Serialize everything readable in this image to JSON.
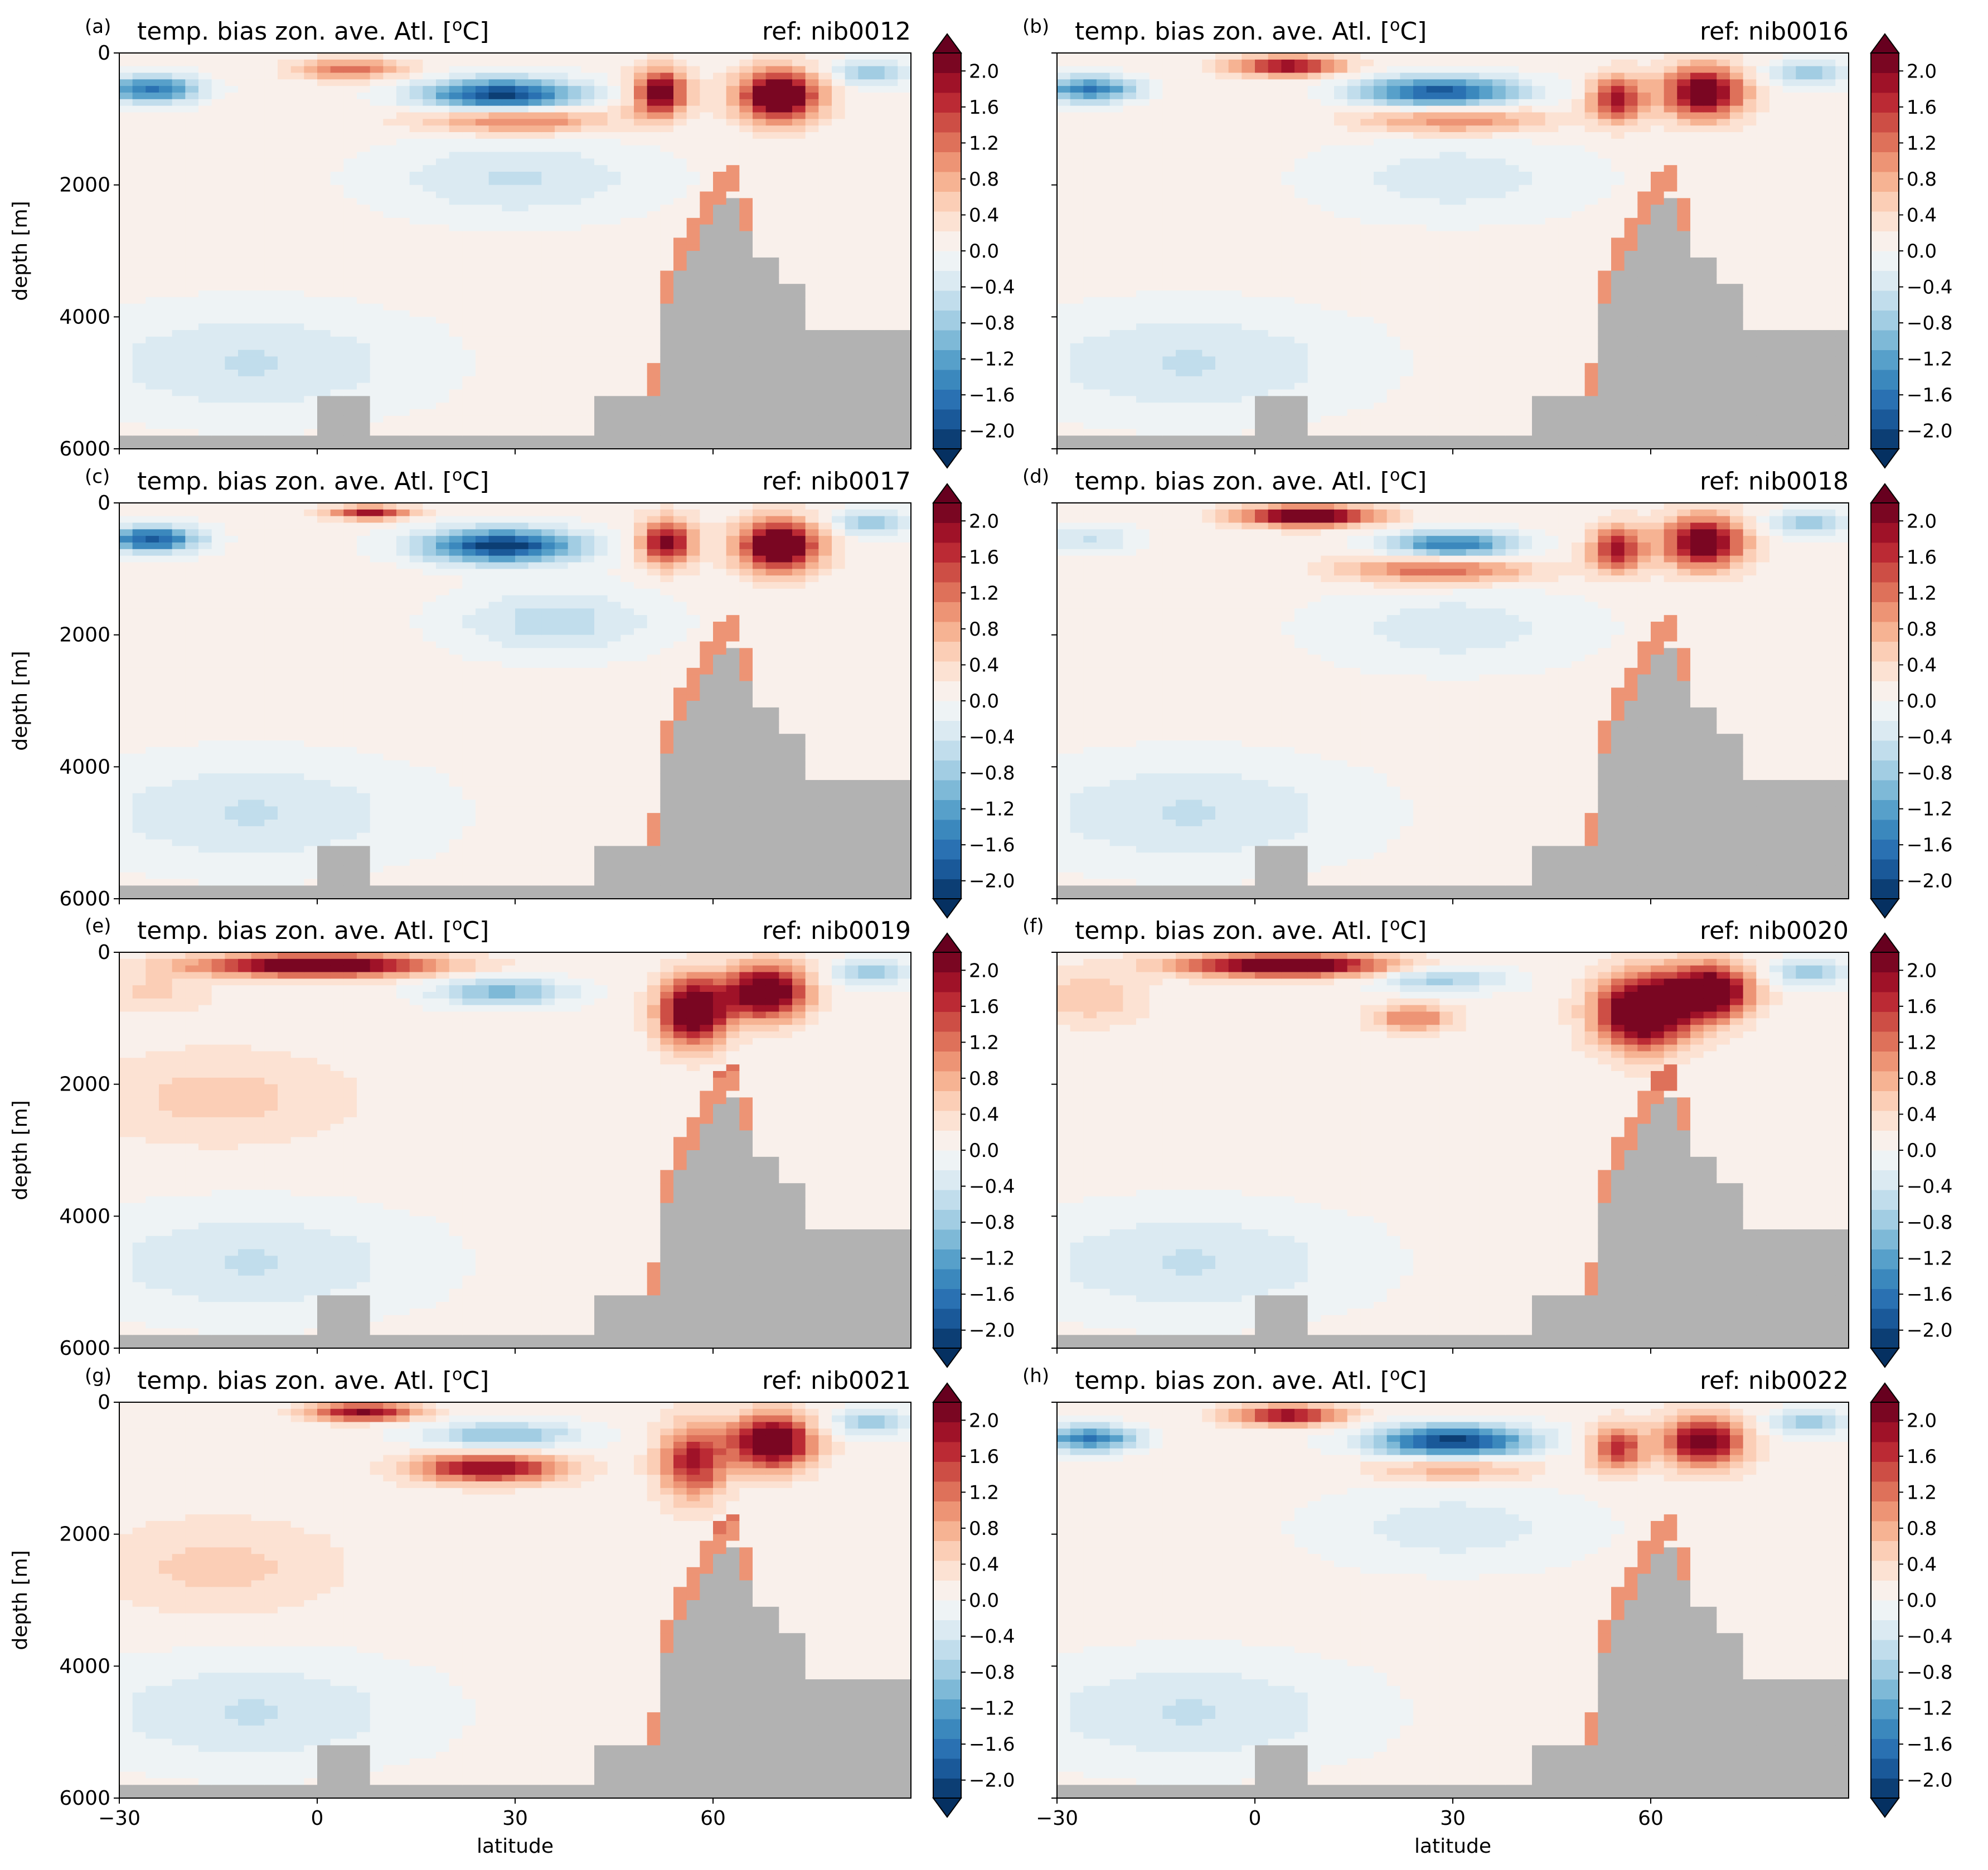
{
  "figure": {
    "panel_title": "temp. bias zon. ave. Atl. [°C]",
    "panel_title_degree_symbol": "o",
    "xlabel": "latitude",
    "ylabel": "depth [m]"
  },
  "colors": {
    "land": "#b2b2b2",
    "colormap": [
      "#053061",
      "#2166ac",
      "#4393c3",
      "#92c5de",
      "#d1e5f0",
      "#f7f7f7",
      "#fddbc7",
      "#f4a582",
      "#d6604d",
      "#b2182b",
      "#67001f"
    ]
  },
  "chart_data": [
    {
      "type": "heatmap",
      "panel": "(a)",
      "title": "temp. bias zon. ave. Atl. [°C]",
      "ref": "ref: nib0012",
      "xlabel": "",
      "ylabel": "depth [m]",
      "xlim": [
        -30,
        90
      ],
      "ylim": [
        6000,
        0
      ],
      "xticks": [
        -30,
        0,
        30,
        60
      ],
      "yticks": [
        0,
        2000,
        4000,
        6000
      ],
      "colorbar": {
        "vmin": -2.0,
        "vmax": 2.0,
        "ticks": [
          "−2.0",
          "−1.6",
          "−1.2",
          "−0.8",
          "−0.4",
          "0.0",
          "0.4",
          "0.8",
          "1.2",
          "1.6",
          "2.0"
        ],
        "extend": "both"
      },
      "bias_features": [
        {
          "lat": -25,
          "depth": 550,
          "value": -1.6,
          "rlat": 7,
          "rdepth": 200
        },
        {
          "lat": 5,
          "depth": 250,
          "value": 1.0,
          "rlat": 8,
          "rdepth": 160
        },
        {
          "lat": 28,
          "depth": 650,
          "value": -2.0,
          "rlat": 12,
          "rdepth": 260
        },
        {
          "lat": 30,
          "depth": 1000,
          "value": 1.2,
          "rlat": 14,
          "rdepth": 220
        },
        {
          "lat": 30,
          "depth": 1900,
          "value": -0.5,
          "rlat": 20,
          "rdepth": 600
        },
        {
          "lat": 52,
          "depth": 600,
          "value": 2.0,
          "rlat": 4,
          "rdepth": 350
        },
        {
          "lat": 70,
          "depth": 650,
          "value": 2.4,
          "rlat": 6,
          "rdepth": 380
        },
        {
          "lat": 84,
          "depth": 300,
          "value": -0.8,
          "rlat": 6,
          "rdepth": 200
        },
        {
          "lat": -10,
          "depth": 4700,
          "value": -0.5,
          "rlat": 25,
          "rdepth": 800
        }
      ]
    },
    {
      "type": "heatmap",
      "panel": "(b)",
      "title": "temp. bias zon. ave. Atl. [°C]",
      "ref": "ref: nib0016",
      "xlabel": "",
      "ylabel": "",
      "xlim": [
        -30,
        90
      ],
      "ylim": [
        6000,
        0
      ],
      "xticks": [
        -30,
        0,
        30,
        60
      ],
      "yticks": [
        0,
        2000,
        4000,
        6000
      ],
      "colorbar": {
        "vmin": -2.0,
        "vmax": 2.0,
        "ticks": [
          "−2.0",
          "−1.6",
          "−1.2",
          "−0.8",
          "−0.4",
          "0.0",
          "0.4",
          "0.8",
          "1.2",
          "1.6",
          "2.0"
        ],
        "extend": "both"
      },
      "bias_features": [
        {
          "lat": -25,
          "depth": 550,
          "value": -1.5,
          "rlat": 7,
          "rdepth": 200
        },
        {
          "lat": 5,
          "depth": 200,
          "value": 1.8,
          "rlat": 8,
          "rdepth": 150
        },
        {
          "lat": 28,
          "depth": 600,
          "value": -1.8,
          "rlat": 12,
          "rdepth": 250
        },
        {
          "lat": 30,
          "depth": 1000,
          "value": 1.0,
          "rlat": 14,
          "rdepth": 220
        },
        {
          "lat": 30,
          "depth": 1900,
          "value": -0.4,
          "rlat": 20,
          "rdepth": 600
        },
        {
          "lat": 55,
          "depth": 700,
          "value": 1.6,
          "rlat": 4,
          "rdepth": 350
        },
        {
          "lat": 68,
          "depth": 600,
          "value": 2.2,
          "rlat": 6,
          "rdepth": 380
        },
        {
          "lat": 84,
          "depth": 300,
          "value": -0.8,
          "rlat": 6,
          "rdepth": 200
        },
        {
          "lat": -10,
          "depth": 4700,
          "value": -0.5,
          "rlat": 25,
          "rdepth": 800
        }
      ]
    },
    {
      "type": "heatmap",
      "panel": "(c)",
      "title": "temp. bias zon. ave. Atl. [°C]",
      "ref": "ref: nib0017",
      "xlabel": "",
      "ylabel": "depth [m]",
      "xlim": [
        -30,
        90
      ],
      "ylim": [
        6000,
        0
      ],
      "xticks": [
        -30,
        0,
        30,
        60
      ],
      "yticks": [
        0,
        2000,
        4000,
        6000
      ],
      "colorbar": {
        "vmin": -2.0,
        "vmax": 2.0,
        "ticks": [
          "−2.0",
          "−1.6",
          "−1.2",
          "−0.8",
          "−0.4",
          "0.0",
          "0.4",
          "0.8",
          "1.2",
          "1.6",
          "2.0"
        ],
        "extend": "both"
      },
      "bias_features": [
        {
          "lat": -25,
          "depth": 550,
          "value": -1.8,
          "rlat": 7,
          "rdepth": 200
        },
        {
          "lat": 8,
          "depth": 150,
          "value": 1.6,
          "rlat": 6,
          "rdepth": 100
        },
        {
          "lat": 28,
          "depth": 650,
          "value": -2.0,
          "rlat": 12,
          "rdepth": 260
        },
        {
          "lat": 36,
          "depth": 1800,
          "value": -0.6,
          "rlat": 15,
          "rdepth": 500
        },
        {
          "lat": 53,
          "depth": 600,
          "value": 1.8,
          "rlat": 4,
          "rdepth": 350
        },
        {
          "lat": 70,
          "depth": 650,
          "value": 2.4,
          "rlat": 6,
          "rdepth": 380
        },
        {
          "lat": 84,
          "depth": 300,
          "value": -0.8,
          "rlat": 6,
          "rdepth": 200
        },
        {
          "lat": -10,
          "depth": 4700,
          "value": -0.5,
          "rlat": 25,
          "rdepth": 800
        }
      ]
    },
    {
      "type": "heatmap",
      "panel": "(d)",
      "title": "temp. bias zon. ave. Atl. [°C]",
      "ref": "ref: nib0018",
      "xlabel": "",
      "ylabel": "",
      "xlim": [
        -30,
        90
      ],
      "ylim": [
        6000,
        0
      ],
      "xticks": [
        -30,
        0,
        30,
        60
      ],
      "yticks": [
        0,
        2000,
        4000,
        6000
      ],
      "colorbar": {
        "vmin": -2.0,
        "vmax": 2.0,
        "ticks": [
          "−2.0",
          "−1.6",
          "−1.2",
          "−0.8",
          "−0.4",
          "0.0",
          "0.4",
          "0.8",
          "1.2",
          "1.6",
          "2.0"
        ],
        "extend": "both"
      },
      "bias_features": [
        {
          "lat": -25,
          "depth": 550,
          "value": -0.5,
          "rlat": 7,
          "rdepth": 200
        },
        {
          "lat": 8,
          "depth": 200,
          "value": 2.2,
          "rlat": 10,
          "rdepth": 150
        },
        {
          "lat": 30,
          "depth": 650,
          "value": -1.5,
          "rlat": 10,
          "rdepth": 220
        },
        {
          "lat": 28,
          "depth": 1000,
          "value": 1.2,
          "rlat": 14,
          "rdepth": 220
        },
        {
          "lat": 30,
          "depth": 1900,
          "value": -0.4,
          "rlat": 20,
          "rdepth": 600
        },
        {
          "lat": 55,
          "depth": 700,
          "value": 1.6,
          "rlat": 4,
          "rdepth": 350
        },
        {
          "lat": 68,
          "depth": 600,
          "value": 2.2,
          "rlat": 6,
          "rdepth": 380
        },
        {
          "lat": 84,
          "depth": 300,
          "value": -0.8,
          "rlat": 6,
          "rdepth": 200
        },
        {
          "lat": -10,
          "depth": 4700,
          "value": -0.5,
          "rlat": 25,
          "rdepth": 800
        }
      ]
    },
    {
      "type": "heatmap",
      "panel": "(e)",
      "title": "temp. bias zon. ave. Atl. [°C]",
      "ref": "ref: nib0019",
      "xlabel": "",
      "ylabel": "depth [m]",
      "xlim": [
        -30,
        90
      ],
      "ylim": [
        6000,
        0
      ],
      "xticks": [
        -30,
        0,
        30,
        60
      ],
      "yticks": [
        0,
        2000,
        4000,
        6000
      ],
      "colorbar": {
        "vmin": -2.0,
        "vmax": 2.0,
        "ticks": [
          "−2.0",
          "−1.6",
          "−1.2",
          "−0.8",
          "−0.4",
          "0.0",
          "0.4",
          "0.8",
          "1.2",
          "1.6",
          "2.0"
        ],
        "extend": "both"
      },
      "bias_features": [
        {
          "lat": 0,
          "depth": 200,
          "value": 2.2,
          "rlat": 18,
          "rdepth": 170
        },
        {
          "lat": -25,
          "depth": 600,
          "value": 0.4,
          "rlat": 8,
          "rdepth": 300
        },
        {
          "lat": 28,
          "depth": 600,
          "value": -1.0,
          "rlat": 10,
          "rdepth": 220
        },
        {
          "lat": 57,
          "depth": 900,
          "value": 2.4,
          "rlat": 5,
          "rdepth": 500
        },
        {
          "lat": 68,
          "depth": 600,
          "value": 2.4,
          "rlat": 6,
          "rdepth": 400
        },
        {
          "lat": 84,
          "depth": 300,
          "value": -0.8,
          "rlat": 6,
          "rdepth": 200
        },
        {
          "lat": -15,
          "depth": 2200,
          "value": 0.4,
          "rlat": 20,
          "rdepth": 700
        },
        {
          "lat": -10,
          "depth": 4700,
          "value": -0.5,
          "rlat": 25,
          "rdepth": 800
        }
      ]
    },
    {
      "type": "heatmap",
      "panel": "(f)",
      "title": "temp. bias zon. ave. Atl. [°C]",
      "ref": "ref: nib0020",
      "xlabel": "",
      "ylabel": "",
      "xlim": [
        -30,
        90
      ],
      "ylim": [
        6000,
        0
      ],
      "xticks": [
        -30,
        0,
        30,
        60
      ],
      "yticks": [
        0,
        2000,
        4000,
        6000
      ],
      "colorbar": {
        "vmin": -2.0,
        "vmax": 2.0,
        "ticks": [
          "−2.0",
          "−1.6",
          "−1.2",
          "−0.8",
          "−0.4",
          "0.0",
          "0.4",
          "0.8",
          "1.2",
          "1.6",
          "2.0"
        ],
        "extend": "both"
      },
      "bias_features": [
        {
          "lat": 5,
          "depth": 200,
          "value": 2.2,
          "rlat": 16,
          "rdepth": 170
        },
        {
          "lat": -25,
          "depth": 700,
          "value": 0.5,
          "rlat": 8,
          "rdepth": 400
        },
        {
          "lat": 28,
          "depth": 400,
          "value": -0.8,
          "rlat": 10,
          "rdepth": 200
        },
        {
          "lat": 24,
          "depth": 1000,
          "value": 1.0,
          "rlat": 6,
          "rdepth": 200
        },
        {
          "lat": 59,
          "depth": 900,
          "value": 2.6,
          "rlat": 7,
          "rdepth": 550
        },
        {
          "lat": 69,
          "depth": 600,
          "value": 2.4,
          "rlat": 6,
          "rdepth": 400
        },
        {
          "lat": 84,
          "depth": 300,
          "value": -0.8,
          "rlat": 6,
          "rdepth": 200
        },
        {
          "lat": -10,
          "depth": 4700,
          "value": -0.5,
          "rlat": 25,
          "rdepth": 800
        }
      ]
    },
    {
      "type": "heatmap",
      "panel": "(g)",
      "title": "temp. bias zon. ave. Atl. [°C]",
      "ref": "ref: nib0021",
      "xlabel": "latitude",
      "ylabel": "depth [m]",
      "xlim": [
        -30,
        90
      ],
      "ylim": [
        6000,
        0
      ],
      "xticks": [
        -30,
        0,
        30,
        60
      ],
      "yticks": [
        0,
        2000,
        4000,
        6000
      ],
      "colorbar": {
        "vmin": -2.0,
        "vmax": 2.0,
        "ticks": [
          "−2.0",
          "−1.6",
          "−1.2",
          "−0.8",
          "−0.4",
          "0.0",
          "0.4",
          "0.8",
          "1.2",
          "1.6",
          "2.0"
        ],
        "extend": "both"
      },
      "bias_features": [
        {
          "lat": 7,
          "depth": 150,
          "value": 1.8,
          "rlat": 8,
          "rdepth": 130
        },
        {
          "lat": 28,
          "depth": 500,
          "value": -0.9,
          "rlat": 12,
          "rdepth": 200
        },
        {
          "lat": 26,
          "depth": 1000,
          "value": 1.8,
          "rlat": 11,
          "rdepth": 220
        },
        {
          "lat": 57,
          "depth": 900,
          "value": 1.6,
          "rlat": 5,
          "rdepth": 550
        },
        {
          "lat": 69,
          "depth": 600,
          "value": 2.4,
          "rlat": 6,
          "rdepth": 400
        },
        {
          "lat": 84,
          "depth": 300,
          "value": -0.8,
          "rlat": 6,
          "rdepth": 200
        },
        {
          "lat": -15,
          "depth": 2500,
          "value": 0.4,
          "rlat": 18,
          "rdepth": 700
        },
        {
          "lat": -10,
          "depth": 4700,
          "value": -0.5,
          "rlat": 25,
          "rdepth": 800
        }
      ]
    },
    {
      "type": "heatmap",
      "panel": "(h)",
      "title": "temp. bias zon. ave. Atl. [°C]",
      "ref": "ref: nib0022",
      "xlabel": "latitude",
      "ylabel": "",
      "xlim": [
        -30,
        90
      ],
      "ylim": [
        6000,
        0
      ],
      "xticks": [
        -30,
        0,
        30,
        60
      ],
      "yticks": [
        0,
        2000,
        4000,
        6000
      ],
      "colorbar": {
        "vmin": -2.0,
        "vmax": 2.0,
        "ticks": [
          "−2.0",
          "−1.6",
          "−1.2",
          "−0.8",
          "−0.4",
          "0.0",
          "0.4",
          "0.8",
          "1.2",
          "1.6",
          "2.0"
        ],
        "extend": "both"
      },
      "bias_features": [
        {
          "lat": -25,
          "depth": 550,
          "value": -1.5,
          "rlat": 7,
          "rdepth": 200
        },
        {
          "lat": 5,
          "depth": 200,
          "value": 1.8,
          "rlat": 8,
          "rdepth": 150
        },
        {
          "lat": 30,
          "depth": 600,
          "value": -2.0,
          "rlat": 12,
          "rdepth": 250
        },
        {
          "lat": 30,
          "depth": 1000,
          "value": 0.8,
          "rlat": 12,
          "rdepth": 200
        },
        {
          "lat": 30,
          "depth": 1900,
          "value": -0.4,
          "rlat": 20,
          "rdepth": 600
        },
        {
          "lat": 55,
          "depth": 700,
          "value": 1.4,
          "rlat": 4,
          "rdepth": 350
        },
        {
          "lat": 68,
          "depth": 600,
          "value": 2.0,
          "rlat": 6,
          "rdepth": 380
        },
        {
          "lat": 84,
          "depth": 300,
          "value": -0.8,
          "rlat": 6,
          "rdepth": 200
        },
        {
          "lat": -10,
          "depth": 4700,
          "value": -0.5,
          "rlat": 25,
          "rdepth": 800
        }
      ]
    }
  ]
}
